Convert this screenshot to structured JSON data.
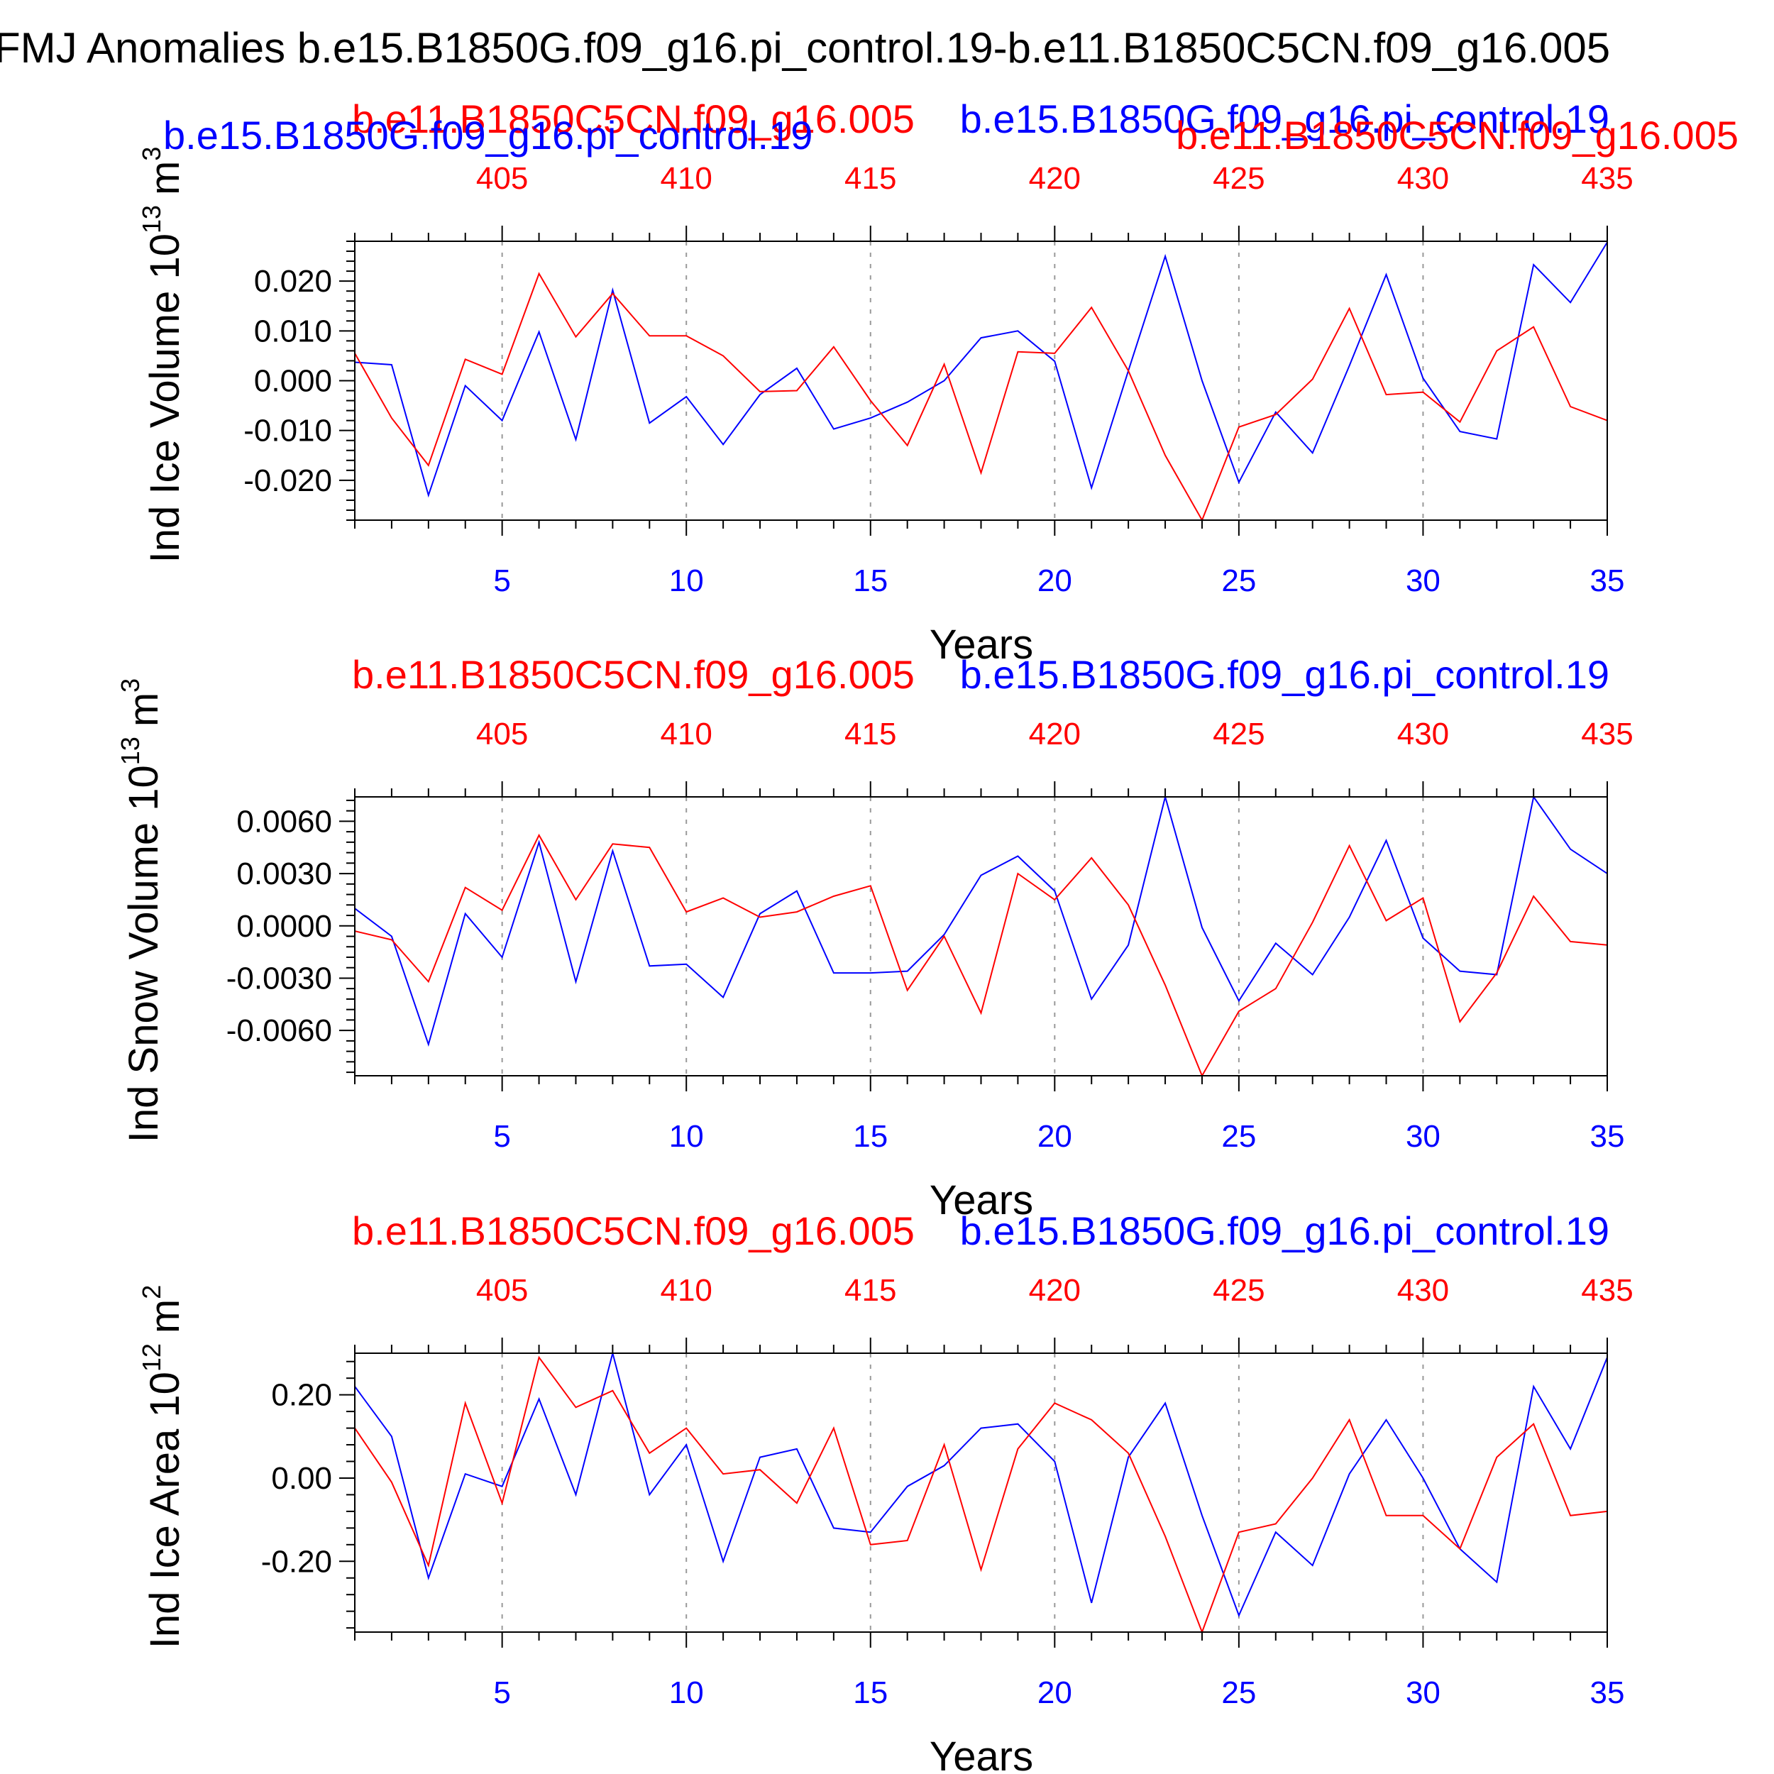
{
  "figure": {
    "title": "FMJ Anomalies b.e15.B1850G.f09_g16.pi_control.19-b.e11.B1850C5CN.f09_g16.005"
  },
  "colors": {
    "blue": "#0000ff",
    "red": "#ff0000",
    "frame": "#000000",
    "grid": "#999999"
  },
  "chart_data": [
    {
      "type": "line",
      "ylabel": "Ind Ice Volume 10",
      "ylabel_exp": "13",
      "ylabel_unit": "m",
      "ylabel_unit_exp": "3",
      "xlabel": "Years",
      "top_legend_left": "b.e11.B1850C5CN.f09_g16.005",
      "top_legend_right": "b.e15.B1850G.f09_g16.pi_control.19",
      "extra_legend_left": "b.e15.B1850G.f09_g16.pi_control.19",
      "extra_legend_right": "b.e11.B1850C5CN.f09_g16.005",
      "xlim": [
        1,
        35
      ],
      "ylim": [
        -0.028,
        0.028
      ],
      "yticks": [
        -0.02,
        -0.01,
        0.0,
        0.01,
        0.02
      ],
      "ytick_labels": [
        "-0.020",
        "-0.010",
        "0.000",
        "0.010",
        "0.020"
      ],
      "yminor_step": 0.002,
      "xticks_bottom": [
        5,
        10,
        15,
        20,
        25,
        30,
        35
      ],
      "xtick_labels_bottom": [
        "5",
        "10",
        "15",
        "20",
        "25",
        "30",
        "35"
      ],
      "xtick_labels_top": [
        "405",
        "410",
        "415",
        "420",
        "425",
        "430",
        "435"
      ],
      "x": [
        1,
        2,
        3,
        4,
        5,
        6,
        7,
        8,
        9,
        10,
        11,
        12,
        13,
        14,
        15,
        16,
        17,
        18,
        19,
        20,
        21,
        22,
        23,
        24,
        25,
        26,
        27,
        28,
        29,
        30,
        31,
        32,
        33,
        34,
        35
      ],
      "series": [
        {
          "color": "#0000ff",
          "values": [
            0.0037,
            0.0032,
            -0.023,
            -0.001,
            -0.008,
            0.0098,
            -0.0118,
            0.0182,
            -0.0085,
            -0.0032,
            -0.0128,
            -0.0028,
            0.0025,
            -0.0097,
            -0.0075,
            -0.0043,
            0.0,
            0.0086,
            0.01,
            0.0039,
            -0.0215,
            0.002,
            0.025,
            0.0,
            -0.0204,
            -0.0063,
            -0.0145,
            0.003,
            0.0213,
            0.0005,
            -0.0102,
            -0.0117,
            0.0233,
            0.0157,
            0.0278
          ]
        },
        {
          "color": "#ff0000",
          "values": [
            0.0055,
            -0.0075,
            -0.017,
            0.0043,
            0.0013,
            0.0215,
            0.0088,
            0.0175,
            0.009,
            0.009,
            0.005,
            -0.0022,
            -0.002,
            0.0068,
            -0.004,
            -0.013,
            0.0033,
            -0.0185,
            0.0058,
            0.0055,
            0.0147,
            0.002,
            -0.015,
            -0.028,
            -0.0093,
            -0.0068,
            0.0003,
            0.0145,
            -0.0028,
            -0.0023,
            -0.0083,
            0.006,
            0.0108,
            -0.0052,
            -0.008
          ]
        }
      ]
    },
    {
      "type": "line",
      "ylabel": "Ind Snow Volume 10",
      "ylabel_exp": "13",
      "ylabel_unit": "m",
      "ylabel_unit_exp": "3",
      "xlabel": "Years",
      "top_legend_left": "b.e11.B1850C5CN.f09_g16.005",
      "top_legend_right": "b.e15.B1850G.f09_g16.pi_control.19",
      "xlim": [
        1,
        35
      ],
      "ylim": [
        -0.0086,
        0.0074
      ],
      "yticks": [
        -0.006,
        -0.003,
        0.0,
        0.003,
        0.006
      ],
      "ytick_labels": [
        "-0.0060",
        "-0.0030",
        "0.0000",
        "0.0030",
        "0.0060"
      ],
      "yminor_step": 0.0006,
      "xticks_bottom": [
        5,
        10,
        15,
        20,
        25,
        30,
        35
      ],
      "xtick_labels_bottom": [
        "5",
        "10",
        "15",
        "20",
        "25",
        "30",
        "35"
      ],
      "xtick_labels_top": [
        "405",
        "410",
        "415",
        "420",
        "425",
        "430",
        "435"
      ],
      "x": [
        1,
        2,
        3,
        4,
        5,
        6,
        7,
        8,
        9,
        10,
        11,
        12,
        13,
        14,
        15,
        16,
        17,
        18,
        19,
        20,
        21,
        22,
        23,
        24,
        25,
        26,
        27,
        28,
        29,
        30,
        31,
        32,
        33,
        34,
        35
      ],
      "series": [
        {
          "color": "#0000ff",
          "values": [
            0.001,
            -0.0006,
            -0.0068,
            0.0007,
            -0.0018,
            0.0048,
            -0.0032,
            0.0043,
            -0.0023,
            -0.0022,
            -0.0041,
            0.0007,
            0.002,
            -0.0027,
            -0.0027,
            -0.0026,
            -0.0005,
            0.0029,
            0.004,
            0.002,
            -0.0042,
            -0.0011,
            0.0074,
            -0.0001,
            -0.0043,
            -0.001,
            -0.0028,
            0.0005,
            0.0049,
            -0.0007,
            -0.0026,
            -0.0028,
            0.0074,
            0.0044,
            0.003
          ]
        },
        {
          "color": "#ff0000",
          "values": [
            -0.0003,
            -0.0008,
            -0.0032,
            0.0022,
            0.0009,
            0.0052,
            0.0015,
            0.0047,
            0.0045,
            0.0008,
            0.0016,
            0.0005,
            0.0008,
            0.0017,
            0.0023,
            -0.0037,
            -0.0006,
            -0.005,
            0.003,
            0.0015,
            0.0039,
            0.0012,
            -0.0034,
            -0.0086,
            -0.0049,
            -0.0036,
            0.0002,
            0.0046,
            0.0003,
            0.0016,
            -0.0055,
            -0.0027,
            0.0017,
            -0.0009,
            -0.0011
          ]
        }
      ]
    },
    {
      "type": "line",
      "ylabel": "Ind Ice Area 10",
      "ylabel_exp": "12",
      "ylabel_unit": "m",
      "ylabel_unit_exp": "2",
      "xlabel": "Years",
      "top_legend_left": "b.e11.B1850C5CN.f09_g16.005",
      "top_legend_right": "b.e15.B1850G.f09_g16.pi_control.19",
      "xlim": [
        1,
        35
      ],
      "ylim": [
        -0.37,
        0.3
      ],
      "yticks": [
        -0.2,
        0.0,
        0.2
      ],
      "ytick_labels": [
        "-0.20",
        "0.00",
        "0.20"
      ],
      "yminor_step": 0.04,
      "xticks_bottom": [
        5,
        10,
        15,
        20,
        25,
        30,
        35
      ],
      "xtick_labels_bottom": [
        "5",
        "10",
        "15",
        "20",
        "25",
        "30",
        "35"
      ],
      "xtick_labels_top": [
        "405",
        "410",
        "415",
        "420",
        "425",
        "430",
        "435"
      ],
      "x": [
        1,
        2,
        3,
        4,
        5,
        6,
        7,
        8,
        9,
        10,
        11,
        12,
        13,
        14,
        15,
        16,
        17,
        18,
        19,
        20,
        21,
        22,
        23,
        24,
        25,
        26,
        27,
        28,
        29,
        30,
        31,
        32,
        33,
        34,
        35
      ],
      "series": [
        {
          "color": "#0000ff",
          "values": [
            0.22,
            0.1,
            -0.24,
            0.01,
            -0.02,
            0.19,
            -0.04,
            0.3,
            -0.04,
            0.08,
            -0.2,
            0.05,
            0.07,
            -0.12,
            -0.13,
            -0.02,
            0.03,
            0.12,
            0.13,
            0.04,
            -0.3,
            0.05,
            0.18,
            -0.09,
            -0.33,
            -0.13,
            -0.21,
            0.01,
            0.14,
            0.0,
            -0.17,
            -0.25,
            0.22,
            0.07,
            0.29
          ]
        },
        {
          "color": "#ff0000",
          "values": [
            0.12,
            -0.01,
            -0.21,
            0.18,
            -0.06,
            0.29,
            0.17,
            0.21,
            0.06,
            0.12,
            0.01,
            0.02,
            -0.06,
            0.12,
            -0.16,
            -0.15,
            0.08,
            -0.22,
            0.07,
            0.18,
            0.14,
            0.06,
            -0.14,
            -0.37,
            -0.13,
            -0.11,
            0.0,
            0.14,
            -0.09,
            -0.09,
            -0.17,
            0.05,
            0.13,
            -0.09,
            -0.08
          ]
        }
      ]
    }
  ]
}
